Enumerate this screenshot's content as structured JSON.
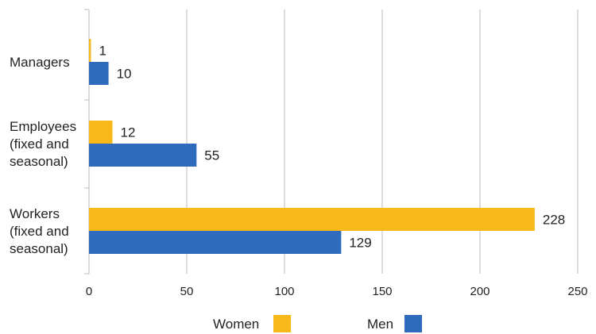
{
  "chart_data": {
    "type": "bar",
    "orientation": "horizontal",
    "categories": [
      [
        "Managers"
      ],
      [
        "Employees",
        "(fixed and",
        "seasonal)"
      ],
      [
        "Workers",
        "(fixed and",
        "seasonal)"
      ]
    ],
    "series": [
      {
        "name": "Women",
        "color": "#f8b819",
        "values": [
          1,
          12,
          228
        ]
      },
      {
        "name": "Men",
        "color": "#2f6bbd",
        "values": [
          10,
          55,
          129
        ]
      }
    ],
    "xlim": [
      0,
      250
    ],
    "xticks": [
      0,
      50,
      100,
      150,
      200,
      250
    ],
    "grid": true,
    "data_labels": true,
    "legend_position": "bottom"
  }
}
